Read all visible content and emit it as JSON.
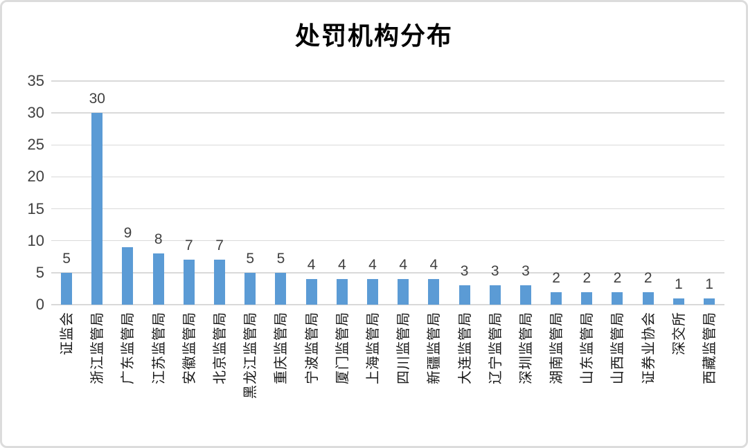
{
  "title": "处罚机构分布",
  "chart_data": {
    "type": "bar",
    "title": "处罚机构分布",
    "categories": [
      "证监会",
      "浙江监管局",
      "广东监管局",
      "江苏监管局",
      "安徽监管局",
      "北京监管局",
      "黑龙江监管局",
      "重庆监管局",
      "宁波监管局",
      "厦门监管局",
      "上海监管局",
      "四川监管局",
      "新疆监管局",
      "大连监管局",
      "辽宁监管局",
      "深圳监管局",
      "湖南监管局",
      "山东监管局",
      "山西监管局",
      "证券业协会",
      "深交所",
      "西藏监管局"
    ],
    "values": [
      5,
      30,
      9,
      8,
      7,
      7,
      5,
      5,
      4,
      4,
      4,
      4,
      4,
      3,
      3,
      3,
      2,
      2,
      2,
      2,
      1,
      1
    ],
    "xlabel": "",
    "ylabel": "",
    "ylim": [
      0,
      35
    ],
    "yticks": [
      0,
      5,
      10,
      15,
      20,
      25,
      30,
      35
    ],
    "grid": "horizontal",
    "legend_position": "none",
    "data_labels": "outside-end",
    "bar_color": "#5b9bd5",
    "gridline_color": "#d9d9d9",
    "tick_label_color": "#404040",
    "category_label_color": "#1a1a1a",
    "title_color": "#000000",
    "frame_border_color": "#dcdcdc"
  }
}
